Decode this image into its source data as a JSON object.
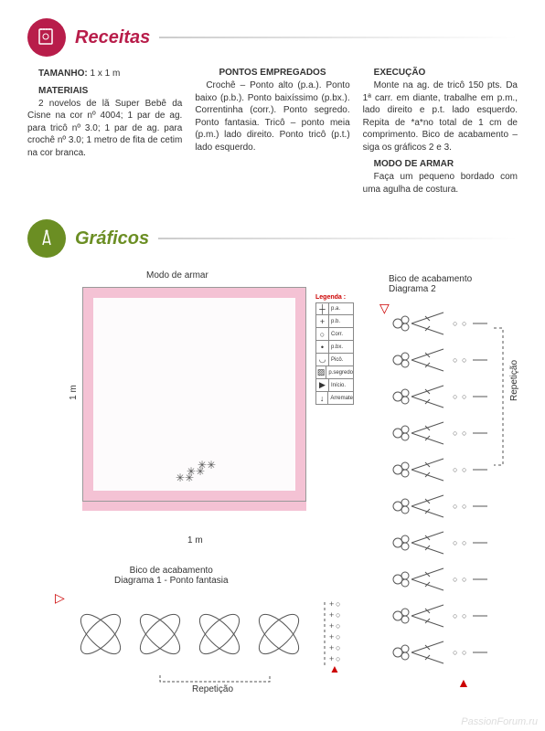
{
  "header1": {
    "title": "Receitas"
  },
  "header2": {
    "title": "Gráficos"
  },
  "col1": {
    "tamanho_h": "TAMANHO:",
    "tamanho_v": " 1 x 1 m",
    "materiais_h": "MATERIAIS",
    "materiais_t": "2 novelos de lã  Super Bebê da Cisne na cor nº 4004; 1 par de ag. para tricô nº 3.0; 1 par de ag. para crochê nº 3.0; 1 metro de fita de cetim na cor branca."
  },
  "col2": {
    "pontos_h": "PONTOS EMPREGADOS",
    "pontos_t": "Crochê – Ponto alto (p.a.). Ponto baixo (p.b.). Ponto baixíssimo (p.bx.). Correntinha (corr.). Ponto segredo. Ponto fantasia. Tricô – ponto meia (p.m.) lado direito. Ponto tricô (p.t.) lado esquerdo."
  },
  "col3": {
    "exec_h": "EXECUÇÃO",
    "exec_t": "Monte na ag. de tricô 150 pts. Da 1ª carr. em diante, trabalhe em p.m., lado direito e p.t. lado esquerdo. Repita de *a*no total de 1 cm de comprimento. Bico de acabamento – siga os gráficos 2 e 3.",
    "modo_h": "MODO DE ARMAR",
    "modo_t": "Faça um pequeno bordado com uma agulha de costura."
  },
  "diagram": {
    "modo": "Modo de armar",
    "dim": "1 m",
    "legend_title": "Legenda :",
    "legend": [
      {
        "s": "┼",
        "t": "p.a."
      },
      {
        "s": "+",
        "t": "p.b."
      },
      {
        "s": "○",
        "t": "Corr."
      },
      {
        "s": "•",
        "t": "p.bx."
      },
      {
        "s": "◡",
        "t": "Picô."
      },
      {
        "s": "▨",
        "t": "p.segredo"
      },
      {
        "s": "▶",
        "t": "Início."
      },
      {
        "s": "↓",
        "t": "Arremate"
      }
    ],
    "diag2_title": "Bico de acabamento\nDiagrama 2",
    "diag1_title": "Bico de acabamento\nDiagrama 1 - Ponto fantasia",
    "rep": "Repetição"
  },
  "watermark": "PassionForum.ru",
  "colors": {
    "magenta": "#b81d4a",
    "olive": "#6b8e23",
    "pink": "#f4c2d4",
    "red": "#c00"
  }
}
